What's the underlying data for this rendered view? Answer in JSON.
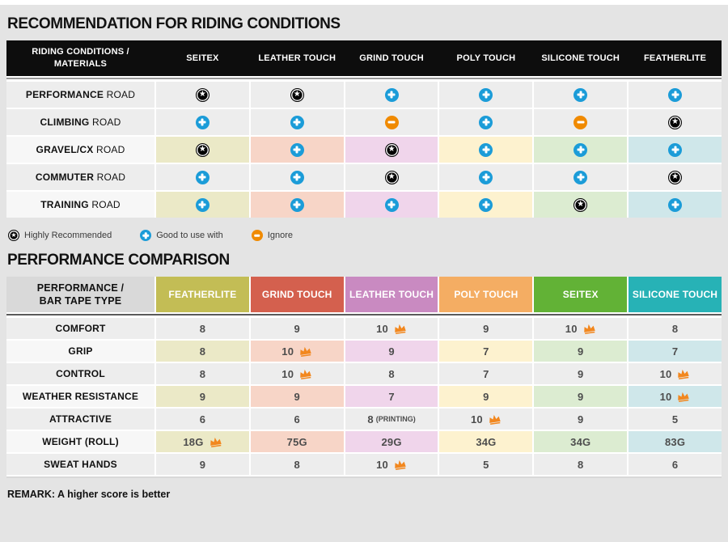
{
  "section1": {
    "title": "RECOMMENDATION FOR RIDING CONDITIONS"
  },
  "table1": {
    "header_label": "RIDING CONDITIONS / MATERIALS",
    "columns": [
      "SEITEX",
      "LEATHER TOUCH",
      "GRIND TOUCH",
      "POLY TOUCH",
      "SILICONE TOUCH",
      "FEATHERLITE"
    ],
    "rows": [
      {
        "label_bold": "PERFORMANCE",
        "label_rest": "ROAD",
        "tinted": false,
        "cells": [
          "star",
          "star",
          "plus",
          "plus",
          "plus",
          "plus"
        ]
      },
      {
        "label_bold": "CLIMBING",
        "label_rest": "ROAD",
        "tinted": false,
        "cells": [
          "plus",
          "plus",
          "minus",
          "plus",
          "minus",
          "star"
        ]
      },
      {
        "label_bold": "GRAVEL/CX",
        "label_rest": "ROAD",
        "tinted": true,
        "cells": [
          "star",
          "plus",
          "star",
          "plus",
          "plus",
          "plus"
        ]
      },
      {
        "label_bold": "COMMUTER",
        "label_rest": "ROAD",
        "tinted": false,
        "cells": [
          "plus",
          "plus",
          "star",
          "plus",
          "plus",
          "star"
        ]
      },
      {
        "label_bold": "TRAINING",
        "label_rest": "ROAD",
        "tinted": true,
        "cells": [
          "plus",
          "plus",
          "plus",
          "plus",
          "star",
          "plus"
        ]
      }
    ]
  },
  "legend": {
    "items": [
      {
        "icon": "star",
        "label": "Highly Recommended"
      },
      {
        "icon": "plus",
        "label": "Good to use with"
      },
      {
        "icon": "minus",
        "label": "Ignore"
      }
    ]
  },
  "section2": {
    "title": "PERFORMANCE COMPARISON"
  },
  "table2": {
    "header_label": "PERFORMANCE / BAR TAPE TYPE",
    "columns": [
      {
        "label": "FEATHERLITE",
        "color": "#c3bd55"
      },
      {
        "label": "GRIND TOUCH",
        "color": "#d4604e"
      },
      {
        "label": "LEATHER TOUCH",
        "color": "#c98ac1"
      },
      {
        "label": "POLY TOUCH",
        "color": "#f4ad63"
      },
      {
        "label": "SEITEX",
        "color": "#62b236"
      },
      {
        "label": "SILICONE TOUCH",
        "color": "#27b2b6"
      }
    ],
    "rows": [
      {
        "label": "COMFORT",
        "tinted": false,
        "values": [
          {
            "v": "8"
          },
          {
            "v": "9"
          },
          {
            "v": "10",
            "crown": true
          },
          {
            "v": "9"
          },
          {
            "v": "10",
            "crown": true
          },
          {
            "v": "8"
          }
        ]
      },
      {
        "label": "GRIP",
        "tinted": true,
        "values": [
          {
            "v": "8"
          },
          {
            "v": "10",
            "crown": true
          },
          {
            "v": "9"
          },
          {
            "v": "7"
          },
          {
            "v": "9"
          },
          {
            "v": "7"
          }
        ]
      },
      {
        "label": "CONTROL",
        "tinted": false,
        "values": [
          {
            "v": "8"
          },
          {
            "v": "10",
            "crown": true
          },
          {
            "v": "8"
          },
          {
            "v": "7"
          },
          {
            "v": "9"
          },
          {
            "v": "10",
            "crown": true
          }
        ]
      },
      {
        "label": "WEATHER RESISTANCE",
        "tinted": true,
        "values": [
          {
            "v": "9"
          },
          {
            "v": "9"
          },
          {
            "v": "7"
          },
          {
            "v": "9"
          },
          {
            "v": "9"
          },
          {
            "v": "10",
            "crown": true
          }
        ]
      },
      {
        "label": "ATTRACTIVE",
        "tinted": false,
        "values": [
          {
            "v": "6"
          },
          {
            "v": "6"
          },
          {
            "v": "8",
            "suffix": "(PRINTING)"
          },
          {
            "v": "10",
            "crown": true
          },
          {
            "v": "9"
          },
          {
            "v": "5"
          }
        ]
      },
      {
        "label": "WEIGHT (ROLL)",
        "tinted": true,
        "values": [
          {
            "v": "18G",
            "crown": true
          },
          {
            "v": "75G"
          },
          {
            "v": "29G"
          },
          {
            "v": "34G"
          },
          {
            "v": "34G"
          },
          {
            "v": "83G"
          }
        ]
      },
      {
        "label": "SWEAT HANDS",
        "tinted": false,
        "values": [
          {
            "v": "9"
          },
          {
            "v": "8"
          },
          {
            "v": "10",
            "crown": true
          },
          {
            "v": "5"
          },
          {
            "v": "8"
          },
          {
            "v": "6"
          }
        ]
      }
    ]
  },
  "remark": "REMARK: A higher score is better",
  "colors": {
    "plus": "#1b9cd8",
    "minus": "#f08a00",
    "star": "#000000",
    "crown": "#f2871e",
    "header_black": "#0d0d0d",
    "row_gray": "#ededed",
    "row_label_white": "#f7f7f7",
    "column_tints": [
      "#ebe9c7",
      "#f7d5c7",
      "#f0d5eb",
      "#fdf2cf",
      "#dcecd1",
      "#cfe7ea"
    ]
  },
  "chart_data": [
    {
      "type": "table",
      "title": "RECOMMENDATION FOR RIDING CONDITIONS",
      "row_header": "RIDING CONDITIONS / MATERIALS",
      "columns": [
        "SEITEX",
        "LEATHER TOUCH",
        "GRIND TOUCH",
        "POLY TOUCH",
        "SILICONE TOUCH",
        "FEATHERLITE"
      ],
      "rows": [
        "PERFORMANCE ROAD",
        "CLIMBING ROAD",
        "GRAVEL/CX ROAD",
        "COMMUTER ROAD",
        "TRAINING ROAD"
      ],
      "cells": [
        [
          "highly_recommended",
          "highly_recommended",
          "good_to_use_with",
          "good_to_use_with",
          "good_to_use_with",
          "good_to_use_with"
        ],
        [
          "good_to_use_with",
          "good_to_use_with",
          "ignore",
          "good_to_use_with",
          "ignore",
          "highly_recommended"
        ],
        [
          "highly_recommended",
          "good_to_use_with",
          "highly_recommended",
          "good_to_use_with",
          "good_to_use_with",
          "good_to_use_with"
        ],
        [
          "good_to_use_with",
          "good_to_use_with",
          "highly_recommended",
          "good_to_use_with",
          "good_to_use_with",
          "highly_recommended"
        ],
        [
          "good_to_use_with",
          "good_to_use_with",
          "good_to_use_with",
          "good_to_use_with",
          "highly_recommended",
          "good_to_use_with"
        ]
      ],
      "legend": {
        "star": "Highly Recommended",
        "plus": "Good to use with",
        "minus": "Ignore"
      }
    },
    {
      "type": "table",
      "title": "PERFORMANCE COMPARISON",
      "row_header": "PERFORMANCE / BAR TAPE TYPE",
      "columns": [
        "FEATHERLITE",
        "GRIND TOUCH",
        "LEATHER TOUCH",
        "POLY TOUCH",
        "SEITEX",
        "SILICONE TOUCH"
      ],
      "rows": [
        "COMFORT",
        "GRIP",
        "CONTROL",
        "WEATHER RESISTANCE",
        "ATTRACTIVE",
        "WEIGHT (ROLL)",
        "SWEAT HANDS"
      ],
      "cells": [
        [
          "8",
          "9",
          "10 (best)",
          "9",
          "10 (best)",
          "8"
        ],
        [
          "8",
          "10 (best)",
          "9",
          "7",
          "9",
          "7"
        ],
        [
          "8",
          "10 (best)",
          "8",
          "7",
          "9",
          "10 (best)"
        ],
        [
          "9",
          "9",
          "7",
          "9",
          "9",
          "10 (best)"
        ],
        [
          "6",
          "6",
          "8 (PRINTING)",
          "10 (best)",
          "9",
          "5"
        ],
        [
          "18G (best)",
          "75G",
          "29G",
          "34G",
          "34G",
          "83G"
        ],
        [
          "9",
          "8",
          "10 (best)",
          "5",
          "8",
          "6"
        ]
      ],
      "remark": "REMARK: A higher score is better"
    }
  ]
}
